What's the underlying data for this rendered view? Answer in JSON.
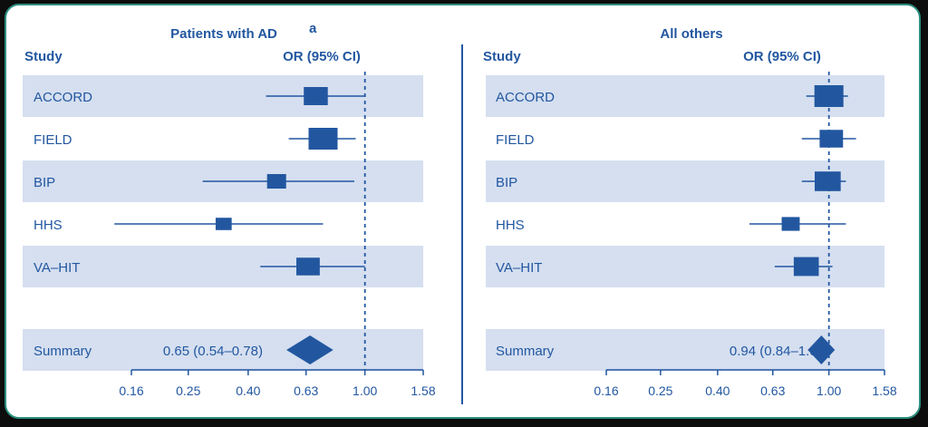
{
  "chart_data": [
    {
      "type": "forest",
      "title": "Patients with AD",
      "title_superscript": "a",
      "col_study": "Study",
      "col_or": "OR (95% CI)",
      "xscale": "log",
      "xlim": [
        0.16,
        1.58
      ],
      "xticks": [
        "0.16",
        "0.25",
        "0.40",
        "0.63",
        "1.00",
        "1.58"
      ],
      "tick_values": [
        0.16,
        0.25,
        0.4,
        0.63,
        1.0,
        1.58
      ],
      "reference_line": 1.0,
      "studies": [
        {
          "name": "ACCORD",
          "or": 0.68,
          "lo": 0.46,
          "hi": 1.0,
          "weight": 0.75
        },
        {
          "name": "FIELD",
          "or": 0.72,
          "lo": 0.55,
          "hi": 0.93,
          "weight": 1.0
        },
        {
          "name": "BIP",
          "or": 0.5,
          "lo": 0.28,
          "hi": 0.92,
          "weight": 0.5
        },
        {
          "name": "HHS",
          "or": 0.33,
          "lo": 0.14,
          "hi": 0.72,
          "weight": 0.35
        },
        {
          "name": "VA–HIT",
          "or": 0.64,
          "lo": 0.44,
          "hi": 1.0,
          "weight": 0.72
        }
      ],
      "summary": {
        "label": "Summary",
        "text": "0.65 (0.54–0.78)",
        "or": 0.65,
        "lo": 0.54,
        "hi": 0.78
      }
    },
    {
      "type": "forest",
      "title": "All others",
      "col_study": "Study",
      "col_or": "OR (95% CI)",
      "xscale": "log",
      "xlim": [
        0.16,
        1.58
      ],
      "xticks": [
        "0.16",
        "0.25",
        "0.40",
        "0.63",
        "1.00",
        "1.58"
      ],
      "tick_values": [
        0.16,
        0.25,
        0.4,
        0.63,
        1.0,
        1.58
      ],
      "reference_line": 1.0,
      "studies": [
        {
          "name": "ACCORD",
          "or": 1.0,
          "lo": 0.83,
          "hi": 1.17,
          "weight": 1.0
        },
        {
          "name": "FIELD",
          "or": 1.02,
          "lo": 0.8,
          "hi": 1.25,
          "weight": 0.72
        },
        {
          "name": "BIP",
          "or": 0.99,
          "lo": 0.8,
          "hi": 1.15,
          "weight": 0.85
        },
        {
          "name": "HHS",
          "or": 0.73,
          "lo": 0.52,
          "hi": 1.15,
          "weight": 0.45
        },
        {
          "name": "VA–HIT",
          "or": 0.83,
          "lo": 0.64,
          "hi": 1.03,
          "weight": 0.8
        }
      ],
      "summary": {
        "label": "Summary",
        "text": "0.94 (0.84–1.05)",
        "or": 0.94,
        "lo": 0.84,
        "hi": 1.05
      }
    }
  ],
  "colors": {
    "text": "#2257a0",
    "marker": "#2257a0",
    "band": "#d5dff0",
    "border": "#2a8f7f",
    "background": "#0d0d0d"
  }
}
